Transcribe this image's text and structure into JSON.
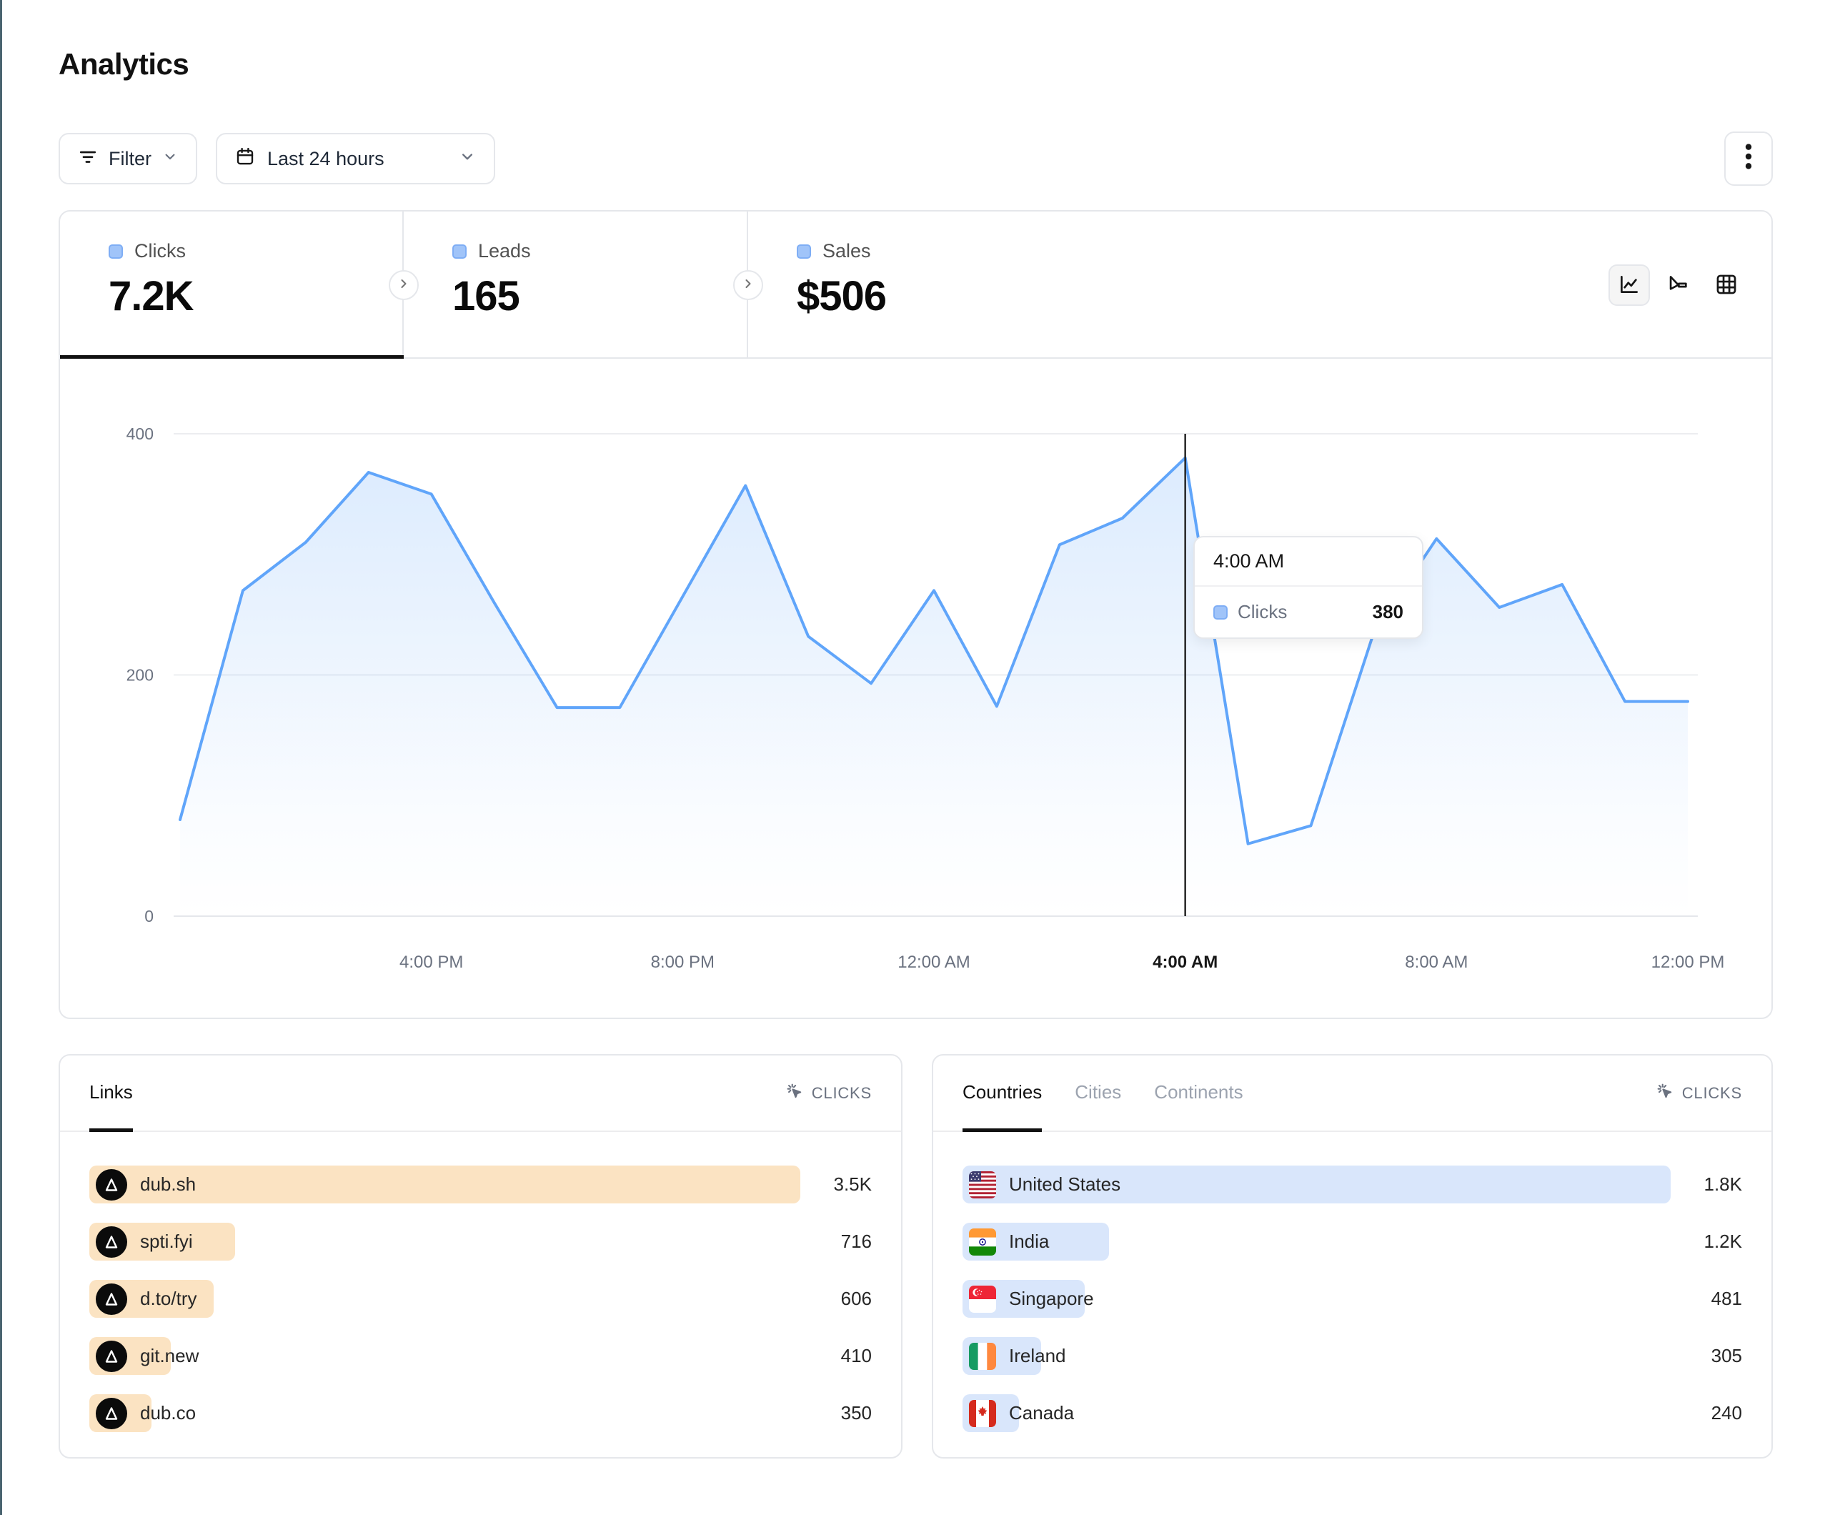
{
  "page": {
    "title": "Analytics"
  },
  "toolbar": {
    "filter_label": "Filter",
    "date_range_label": "Last 24 hours",
    "icons": {
      "filter": "filter-lines-icon",
      "date": "calendar-icon",
      "menu": "kebab-menu-icon"
    }
  },
  "stats": {
    "tabs": [
      {
        "label": "Clicks",
        "value": "7.2K",
        "active": true
      },
      {
        "label": "Leads",
        "value": "165",
        "active": false
      },
      {
        "label": "Sales",
        "value": "$506",
        "active": false
      }
    ]
  },
  "view_toggles": [
    "line-chart",
    "funnel-chart",
    "table-grid"
  ],
  "chart_data": {
    "type": "area",
    "title": "Clicks over last 24 hours",
    "x": [
      "12:00 PM",
      "1:00 PM",
      "2:00 PM",
      "3:00 PM",
      "4:00 PM",
      "5:00 PM",
      "6:00 PM",
      "7:00 PM",
      "8:00 PM",
      "9:00 PM",
      "10:00 PM",
      "11:00 PM",
      "12:00 AM",
      "1:00 AM",
      "2:00 AM",
      "3:00 AM",
      "4:00 AM",
      "5:00 AM",
      "6:00 AM",
      "7:00 AM",
      "8:00 AM",
      "9:00 AM",
      "10:00 AM",
      "11:00 AM",
      "12:00 PM"
    ],
    "values": [
      80,
      270,
      310,
      368,
      350,
      260,
      173,
      173,
      265,
      357,
      232,
      193,
      270,
      174,
      308,
      330,
      380,
      60,
      75,
      235,
      313,
      256,
      275,
      178,
      178
    ],
    "ylim": [
      0,
      400
    ],
    "yticks": [
      0,
      200,
      400
    ],
    "tick_indices": [
      4,
      8,
      12,
      16,
      20,
      24
    ],
    "tick_labels": [
      "4:00 PM",
      "8:00 PM",
      "12:00 AM",
      "4:00 AM",
      "8:00 AM",
      "12:00 PM"
    ],
    "grid": true,
    "legend_position": "none",
    "line_color": "#60A5FA",
    "hover_index": 16
  },
  "tooltip": {
    "time": "4:00 AM",
    "series": "Clicks",
    "value": "380"
  },
  "links": {
    "tab": "Links",
    "metric": "CLICKS",
    "rows": [
      {
        "label": "dub.sh",
        "value": "3.5K",
        "bar_pct": 100
      },
      {
        "label": "spti.fyi",
        "value": "716",
        "bar_pct": 20.5
      },
      {
        "label": "d.to/try",
        "value": "606",
        "bar_pct": 17.5
      },
      {
        "label": "git.new",
        "value": "410",
        "bar_pct": 11.5
      },
      {
        "label": "dub.co",
        "value": "350",
        "bar_pct": 8.7
      }
    ]
  },
  "countries": {
    "tabs": [
      "Countries",
      "Cities",
      "Continents"
    ],
    "active_tab": "Countries",
    "metric": "CLICKS",
    "rows": [
      {
        "label": "United States",
        "value": "1.8K",
        "flag": "united-states",
        "bar_pct": 100
      },
      {
        "label": "India",
        "value": "1.2K",
        "flag": "india",
        "bar_pct": 20.7
      },
      {
        "label": "Singapore",
        "value": "481",
        "flag": "singapore",
        "bar_pct": 17.3
      },
      {
        "label": "Ireland",
        "value": "305",
        "flag": "ireland",
        "bar_pct": 11.1
      },
      {
        "label": "Canada",
        "value": "240",
        "flag": "canada",
        "bar_pct": 8
      }
    ]
  },
  "colors": {
    "accent_blue": "#60A5FA",
    "legend_square": "#A0C4F9",
    "links_bar": "#FBE3C2",
    "countries_bar": "#D9E6FB",
    "border": "#E5E7EB",
    "crosshair": "#262626"
  }
}
